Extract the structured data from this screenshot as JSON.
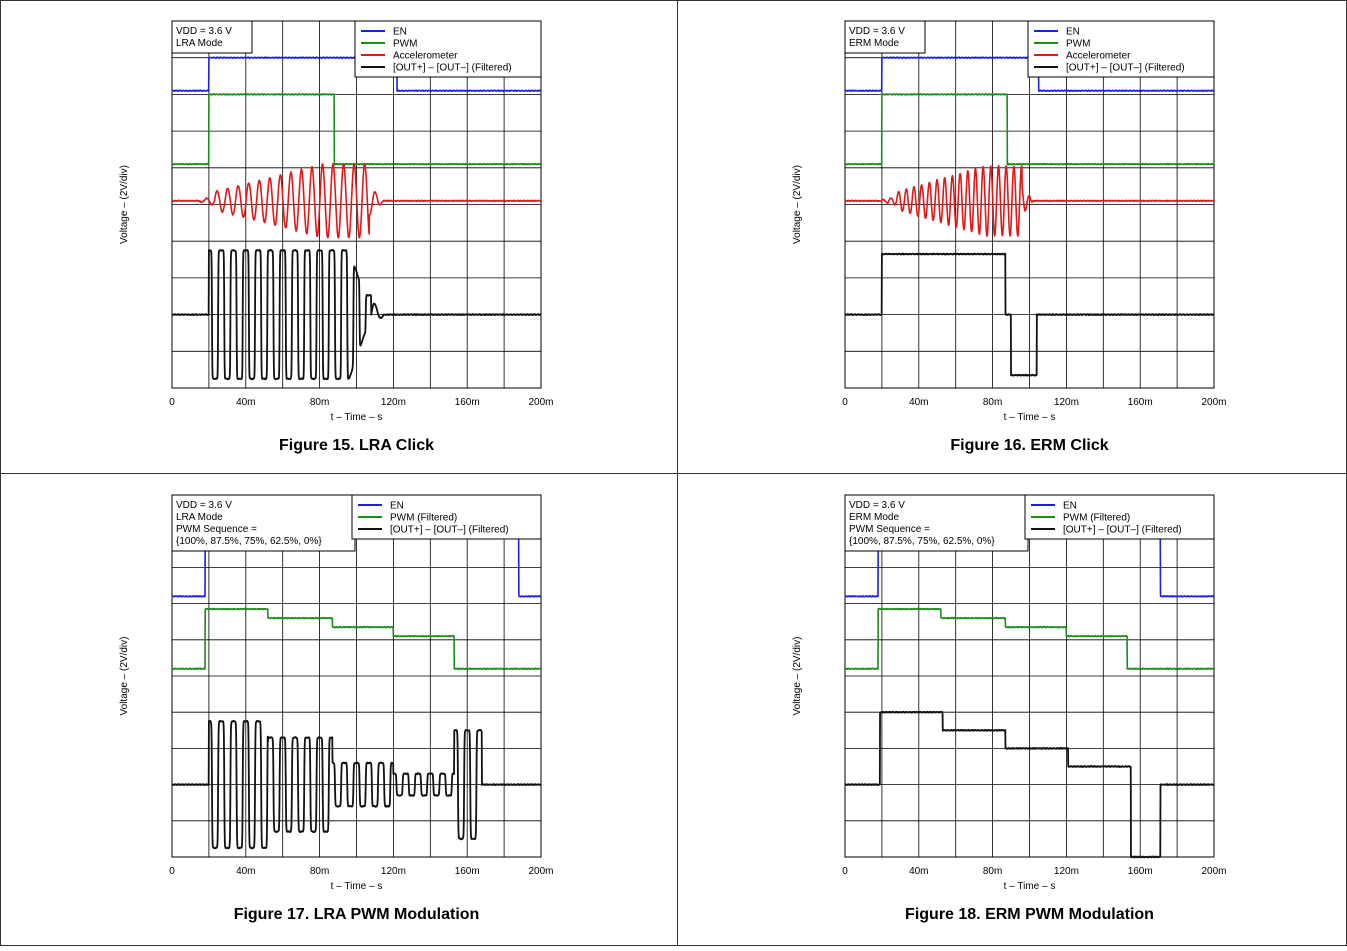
{
  "chart_data": [
    {
      "type": "line",
      "title": "Figure 15. LRA Click",
      "xlabel": "t – Time – s",
      "ylabel": "Voltage – (2V/div)",
      "x_ticks": [
        "0",
        "40m",
        "80m",
        "120m",
        "160m",
        "200m"
      ],
      "xlim": [
        0,
        0.2
      ],
      "x_unit": "s",
      "y_divisions": 10,
      "grid": true,
      "legend_position": "top-right",
      "info_lines": [
        "VDD = 3.6 V",
        "LRA Mode"
      ],
      "series": [
        {
          "name": "EN",
          "color": "#1f1fe0",
          "waveform": "step",
          "baseline_div": 8.1,
          "high_div": 9.0,
          "rise_s": 0.02,
          "fall_s": 0.122
        },
        {
          "name": "PWM",
          "color": "#1a8c1a",
          "waveform": "step",
          "baseline_div": 6.1,
          "high_div": 8.0,
          "rise_s": 0.02,
          "fall_s": 0.088
        },
        {
          "name": "Accelerometer",
          "color": "#e01818",
          "waveform": "burst",
          "baseline_div": 5.1,
          "amplitude_div": 1.0,
          "start_s": 0.023,
          "end_s": 0.107,
          "freq_hz": 175,
          "ring_s": 0.008
        },
        {
          "name": "[OUT+] – [OUT–] (Filtered)",
          "color": "#111111",
          "waveform": "square_burst",
          "baseline_div": 2.0,
          "amplitude_div": 1.75,
          "start_s": 0.02,
          "end_s": 0.108,
          "freq_hz": 150,
          "ring_s": 0.007
        }
      ]
    },
    {
      "type": "line",
      "title": "Figure 16. ERM Click",
      "xlabel": "t – Time – s",
      "ylabel": "Voltage – (2V/div)",
      "x_ticks": [
        "0",
        "40m",
        "80m",
        "120m",
        "160m",
        "200m"
      ],
      "xlim": [
        0,
        0.2
      ],
      "x_unit": "s",
      "y_divisions": 10,
      "grid": true,
      "legend_position": "top-right",
      "info_lines": [
        "VDD = 3.6 V",
        "ERM Mode"
      ],
      "series": [
        {
          "name": "EN",
          "color": "#1f1fe0",
          "waveform": "step",
          "baseline_div": 8.1,
          "high_div": 9.0,
          "rise_s": 0.02,
          "fall_s": 0.105
        },
        {
          "name": "PWM",
          "color": "#1a8c1a",
          "waveform": "step",
          "baseline_div": 6.1,
          "high_div": 8.0,
          "rise_s": 0.02,
          "fall_s": 0.088
        },
        {
          "name": "Accelerometer",
          "color": "#e01818",
          "waveform": "burst",
          "baseline_div": 5.1,
          "amplitude_div": 0.95,
          "start_s": 0.028,
          "end_s": 0.096,
          "freq_hz": 240,
          "ring_s": 0.006
        },
        {
          "name": "[OUT+] – [OUT–] (Filtered)",
          "color": "#111111",
          "waveform": "levels",
          "baseline_div": 2.0,
          "segments": [
            [
              0.02,
              0.087,
              3.65
            ],
            [
              0.087,
              0.09,
              2.0
            ],
            [
              0.09,
              0.104,
              0.35
            ]
          ]
        }
      ]
    },
    {
      "type": "line",
      "title": "Figure 17. LRA PWM Modulation",
      "xlabel": "t – Time – s",
      "ylabel": "Voltage – (2V/div)",
      "x_ticks": [
        "0",
        "40m",
        "80m",
        "120m",
        "160m",
        "200m"
      ],
      "xlim": [
        0,
        0.2
      ],
      "x_unit": "s",
      "y_divisions": 10,
      "grid": true,
      "legend_position": "top-right",
      "info_lines": [
        "VDD = 3.6 V",
        "LRA Mode",
        "PWM Sequence =",
        "{100%, 87.5%, 75%, 62.5%, 0%}"
      ],
      "series": [
        {
          "name": "EN",
          "color": "#1f1fe0",
          "waveform": "step",
          "baseline_div": 7.2,
          "high_div": 8.9,
          "rise_s": 0.018,
          "fall_s": 0.188
        },
        {
          "name": "PWM (Filtered)",
          "color": "#1a8c1a",
          "waveform": "levels",
          "baseline_div": 5.2,
          "segments": [
            [
              0.018,
              0.052,
              6.85
            ],
            [
              0.052,
              0.087,
              6.6
            ],
            [
              0.087,
              0.12,
              6.35
            ],
            [
              0.12,
              0.153,
              6.1
            ]
          ]
        },
        {
          "name": "[OUT+] – [OUT–] (Filtered)",
          "color": "#111111",
          "waveform": "square_steps",
          "baseline_div": 2.0,
          "freq_hz": 150,
          "segments": [
            [
              0.02,
              0.052,
              1.75
            ],
            [
              0.052,
              0.087,
              1.3
            ],
            [
              0.087,
              0.12,
              0.6
            ],
            [
              0.12,
              0.153,
              0.3
            ],
            [
              0.153,
              0.168,
              1.5
            ]
          ]
        }
      ]
    },
    {
      "type": "line",
      "title": "Figure 18. ERM PWM Modulation",
      "xlabel": "t – Time – s",
      "ylabel": "Voltage – (2V/div)",
      "x_ticks": [
        "0",
        "40m",
        "80m",
        "120m",
        "160m",
        "200m"
      ],
      "xlim": [
        0,
        0.2
      ],
      "x_unit": "s",
      "y_divisions": 10,
      "grid": true,
      "legend_position": "top-right",
      "info_lines": [
        "VDD = 3.6 V",
        "ERM Mode",
        "PWM Sequence =",
        "{100%, 87.5%, 75%, 62.5%, 0%}"
      ],
      "series": [
        {
          "name": "EN",
          "color": "#1f1fe0",
          "waveform": "step",
          "baseline_div": 7.2,
          "high_div": 8.9,
          "rise_s": 0.018,
          "fall_s": 0.171
        },
        {
          "name": "PWM (Filtered)",
          "color": "#1a8c1a",
          "waveform": "levels",
          "baseline_div": 5.2,
          "segments": [
            [
              0.018,
              0.052,
              6.85
            ],
            [
              0.052,
              0.087,
              6.6
            ],
            [
              0.087,
              0.12,
              6.35
            ],
            [
              0.12,
              0.153,
              6.1
            ]
          ]
        },
        {
          "name": "[OUT+] – [OUT–] (Filtered)",
          "color": "#111111",
          "waveform": "levels",
          "baseline_div": 2.0,
          "segments": [
            [
              0.019,
              0.053,
              4.0
            ],
            [
              0.053,
              0.087,
              3.5
            ],
            [
              0.087,
              0.121,
              3.0
            ],
            [
              0.121,
              0.155,
              2.5
            ],
            [
              0.155,
              0.171,
              0.0
            ]
          ]
        }
      ]
    }
  ]
}
